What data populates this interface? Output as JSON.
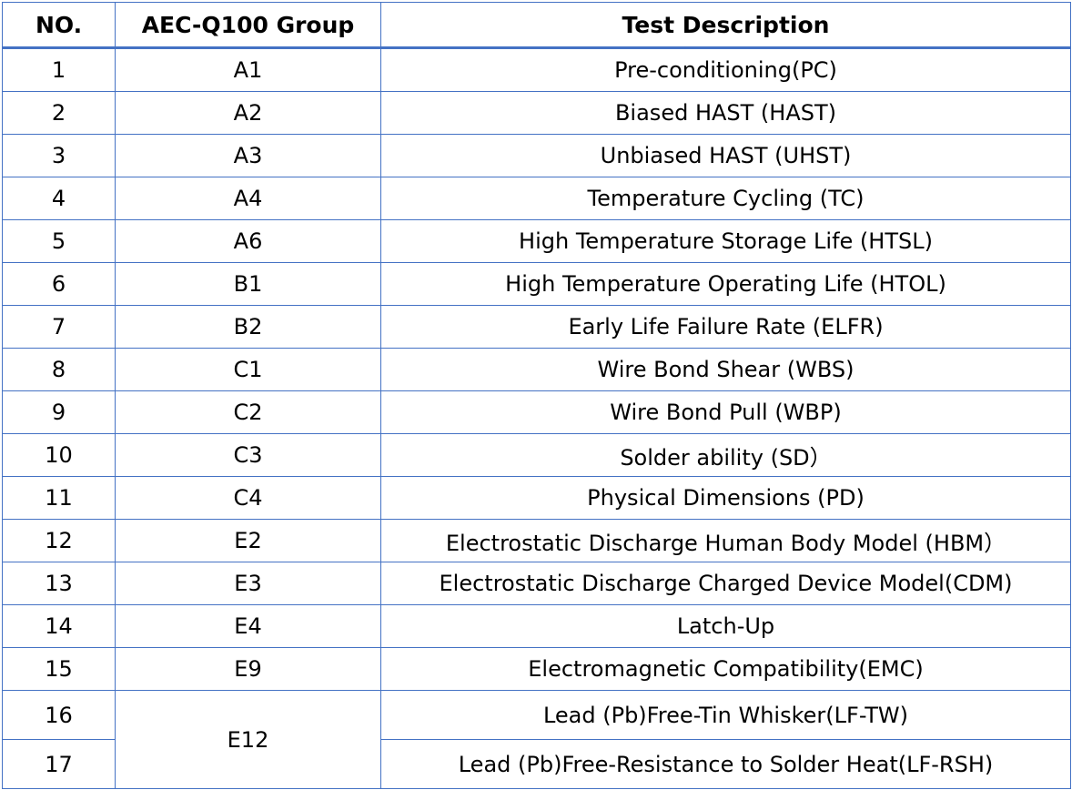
{
  "headers": {
    "no": "NO.",
    "group": "AEC-Q100 Group",
    "desc": "Test Description"
  },
  "rows": [
    {
      "no": "1",
      "group": "A1",
      "desc": "Pre-conditioning(PC)"
    },
    {
      "no": "2",
      "group": "A2",
      "desc": "Biased HAST (HAST)"
    },
    {
      "no": "3",
      "group": "A3",
      "desc": "Unbiased HAST (UHST)"
    },
    {
      "no": "4",
      "group": "A4",
      "desc": "Temperature Cycling (TC)"
    },
    {
      "no": "5",
      "group": "A6",
      "desc": "High Temperature Storage Life (HTSL)"
    },
    {
      "no": "6",
      "group": "B1",
      "desc": "High Temperature Operating Life (HTOL)"
    },
    {
      "no": "7",
      "group": "B2",
      "desc": "Early Life Failure Rate (ELFR)"
    },
    {
      "no": "8",
      "group": "C1",
      "desc": "Wire Bond Shear (WBS)"
    },
    {
      "no": "9",
      "group": "C2",
      "desc": "Wire Bond Pull (WBP)"
    },
    {
      "no": "10",
      "group": "C3",
      "desc": "Solder ability (SD）"
    },
    {
      "no": "11",
      "group": "C4",
      "desc": "Physical Dimensions (PD)"
    },
    {
      "no": "12",
      "group": "E2",
      "desc": "Electrostatic Discharge Human Body Model (HBM）"
    },
    {
      "no": "13",
      "group": "E3",
      "desc": "Electrostatic Discharge Charged Device Model(CDM)"
    },
    {
      "no": "14",
      "group": "E4",
      "desc": "Latch-Up"
    },
    {
      "no": "15",
      "group": "E9",
      "desc": "Electromagnetic Compatibility(EMC)"
    },
    {
      "no": "16",
      "group": "E12",
      "desc": "Lead (Pb)Free-Tin Whisker(LF-TW)"
    },
    {
      "no": "17",
      "group": "E12",
      "desc": "Lead (Pb)Free-Resistance to Solder Heat(LF-RSH)"
    }
  ]
}
